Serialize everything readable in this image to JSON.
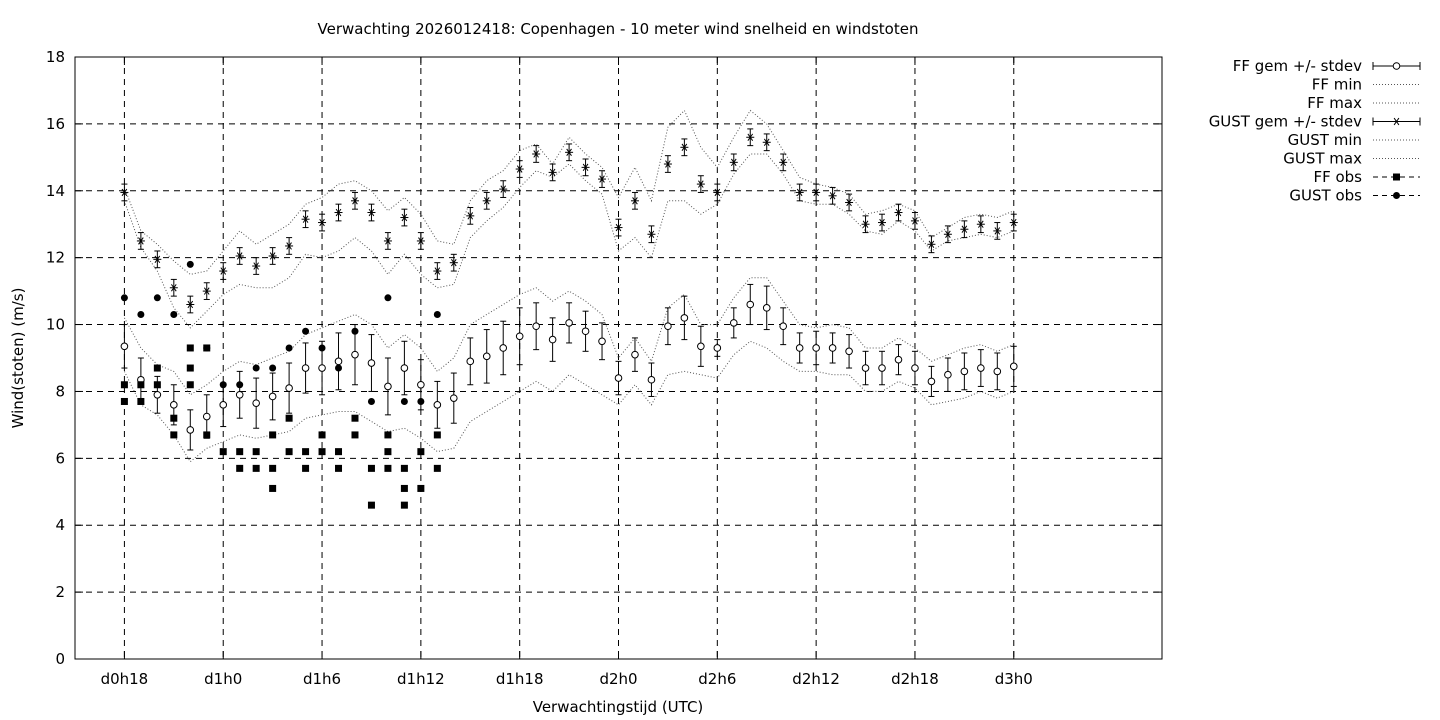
{
  "chart_data": {
    "type": "line",
    "title": "Verwachting 2026012418: Copenhagen - 10 meter wind snelheid en windstoten",
    "xlabel": "Verwachtingstijd (UTC)",
    "ylabel": "Wind(stoten) (m/s)",
    "ylim": [
      0,
      18
    ],
    "yticks": [
      0,
      2,
      4,
      6,
      8,
      10,
      12,
      14,
      16,
      18
    ],
    "x_unit": "hours since d0h0",
    "xlim": [
      15,
      81
    ],
    "xticks": [
      {
        "x": 18,
        "label": "d0h18"
      },
      {
        "x": 24,
        "label": "d1h0"
      },
      {
        "x": 30,
        "label": "d1h6"
      },
      {
        "x": 36,
        "label": "d1h12"
      },
      {
        "x": 42,
        "label": "d1h18"
      },
      {
        "x": 48,
        "label": "d2h0"
      },
      {
        "x": 54,
        "label": "d2h6"
      },
      {
        "x": 60,
        "label": "d2h12"
      },
      {
        "x": 66,
        "label": "d2h18"
      },
      {
        "x": 72,
        "label": "d3h0"
      }
    ],
    "grid": true,
    "legend_position": "outside-right",
    "x": [
      18,
      19,
      20,
      21,
      22,
      23,
      24,
      25,
      26,
      27,
      28,
      29,
      30,
      31,
      32,
      33,
      34,
      35,
      36,
      37,
      38,
      39,
      40,
      41,
      42,
      43,
      44,
      45,
      46,
      47,
      48,
      49,
      50,
      51,
      52,
      53,
      54,
      55,
      56,
      57,
      58,
      59,
      60,
      61,
      62,
      63,
      64,
      65,
      66,
      67,
      68,
      69,
      70,
      71,
      72
    ],
    "series": [
      {
        "name": "FF gem +/- stdev",
        "style": "errorbar-open-circle",
        "values": [
          9.35,
          8.35,
          7.9,
          7.6,
          6.85,
          7.25,
          7.6,
          7.9,
          7.65,
          7.85,
          8.1,
          8.7,
          8.7,
          8.9,
          9.1,
          8.85,
          8.15,
          8.7,
          8.2,
          7.6,
          7.8,
          8.9,
          9.05,
          9.3,
          9.65,
          9.95,
          9.55,
          10.05,
          9.8,
          9.5,
          8.4,
          9.1,
          8.35,
          9.95,
          10.2,
          9.35,
          9.3,
          10.05,
          10.6,
          10.5,
          9.95,
          9.3,
          9.3,
          9.3,
          9.2,
          8.7,
          8.7,
          8.95,
          8.7,
          8.3,
          8.5,
          8.6,
          8.7,
          8.6,
          8.75
        ],
        "stdev": [
          0.65,
          0.65,
          0.55,
          0.6,
          0.6,
          0.65,
          0.65,
          0.7,
          0.75,
          0.7,
          0.75,
          0.75,
          0.8,
          0.85,
          0.9,
          0.85,
          0.85,
          0.8,
          0.75,
          0.7,
          0.75,
          0.7,
          0.8,
          0.8,
          0.85,
          0.7,
          0.65,
          0.6,
          0.6,
          0.55,
          0.5,
          0.5,
          0.5,
          0.55,
          0.65,
          0.6,
          0.25,
          0.45,
          0.6,
          0.65,
          0.55,
          0.45,
          0.5,
          0.45,
          0.5,
          0.5,
          0.5,
          0.45,
          0.5,
          0.45,
          0.5,
          0.55,
          0.55,
          0.55,
          0.6
        ]
      },
      {
        "name": "FF min",
        "style": "dotted",
        "values": [
          8.6,
          7.6,
          7.3,
          6.7,
          5.9,
          6.3,
          6.5,
          6.7,
          6.6,
          6.7,
          6.8,
          7.2,
          7.3,
          7.4,
          7.4,
          7.1,
          6.8,
          6.9,
          6.6,
          6.2,
          6.3,
          7.1,
          7.4,
          7.7,
          8.0,
          8.3,
          8.0,
          8.5,
          8.2,
          7.9,
          7.6,
          8.2,
          7.6,
          8.5,
          8.6,
          8.5,
          8.4,
          9.1,
          9.5,
          9.3,
          8.9,
          8.6,
          8.6,
          8.5,
          8.5,
          8.0,
          8.0,
          8.3,
          8.1,
          7.6,
          7.7,
          7.8,
          8.0,
          7.8,
          8.0
        ]
      },
      {
        "name": "FF max",
        "style": "dotted",
        "values": [
          10.2,
          9.3,
          8.8,
          8.6,
          7.9,
          8.2,
          8.6,
          8.9,
          8.8,
          9.0,
          9.2,
          9.7,
          9.9,
          10.1,
          10.3,
          10.0,
          9.3,
          9.7,
          9.3,
          8.6,
          9.0,
          10.0,
          10.3,
          10.6,
          10.9,
          11.1,
          10.7,
          11.0,
          10.7,
          10.3,
          9.0,
          9.6,
          8.9,
          10.5,
          10.9,
          10.0,
          10.0,
          10.8,
          11.4,
          11.4,
          10.7,
          10.0,
          9.9,
          10.0,
          9.9,
          9.3,
          9.3,
          9.6,
          9.3,
          8.9,
          9.1,
          9.3,
          9.4,
          9.2,
          9.4
        ]
      },
      {
        "name": "GUST gem +/- stdev",
        "style": "errorbar-star",
        "values": [
          13.95,
          12.5,
          11.95,
          11.1,
          10.6,
          11.0,
          11.6,
          12.05,
          11.75,
          12.05,
          12.35,
          13.15,
          13.05,
          13.35,
          13.7,
          13.35,
          12.5,
          13.2,
          12.5,
          11.6,
          11.85,
          13.25,
          13.7,
          14.05,
          14.65,
          15.1,
          14.55,
          15.15,
          14.7,
          14.35,
          12.9,
          13.7,
          12.7,
          14.8,
          15.3,
          14.2,
          13.95,
          14.85,
          15.6,
          15.45,
          14.85,
          13.95,
          13.95,
          13.85,
          13.65,
          13.0,
          13.05,
          13.35,
          13.1,
          12.4,
          12.7,
          12.85,
          13.0,
          12.8,
          13.05
        ]
      },
      {
        "name": "GUST min",
        "style": "dotted",
        "values": [
          13.7,
          12.3,
          11.6,
          10.5,
          9.9,
          10.4,
          10.9,
          11.2,
          11.1,
          11.1,
          11.4,
          12.1,
          12.0,
          12.2,
          12.6,
          12.2,
          11.5,
          12.1,
          11.5,
          11.1,
          11.2,
          12.6,
          13.1,
          13.5,
          14.1,
          14.6,
          14.4,
          14.8,
          14.3,
          13.9,
          12.2,
          12.6,
          12.0,
          13.7,
          13.7,
          13.3,
          13.6,
          14.5,
          15.1,
          15.1,
          14.5,
          13.7,
          13.6,
          13.6,
          13.3,
          12.8,
          12.7,
          13.1,
          12.8,
          12.2,
          12.5,
          12.6,
          12.7,
          12.6,
          12.8
        ]
      },
      {
        "name": "GUST max",
        "style": "dotted",
        "values": [
          14.1,
          12.8,
          12.4,
          11.9,
          11.5,
          11.6,
          12.2,
          12.8,
          12.4,
          12.7,
          13.0,
          13.6,
          13.8,
          14.2,
          14.3,
          14.0,
          13.4,
          13.8,
          13.3,
          12.5,
          12.4,
          13.7,
          14.3,
          14.6,
          15.2,
          15.4,
          14.8,
          15.6,
          15.1,
          14.7,
          13.8,
          14.7,
          13.7,
          15.9,
          16.4,
          15.3,
          14.7,
          15.6,
          16.4,
          16.0,
          15.2,
          14.4,
          14.2,
          14.1,
          13.9,
          13.3,
          13.4,
          13.6,
          13.4,
          12.6,
          12.9,
          13.2,
          13.3,
          13.2,
          13.4
        ]
      },
      {
        "name": "FF obs",
        "style": "filled-square",
        "points": [
          [
            18,
            7.7
          ],
          [
            18,
            8.2
          ],
          [
            19,
            7.7
          ],
          [
            19,
            8.2
          ],
          [
            20,
            8.2
          ],
          [
            20,
            8.7
          ],
          [
            21,
            6.7
          ],
          [
            21,
            7.2
          ],
          [
            22,
            8.2
          ],
          [
            22,
            8.7
          ],
          [
            22,
            9.3
          ],
          [
            23,
            6.7
          ],
          [
            23,
            9.3
          ],
          [
            24,
            6.2
          ],
          [
            25,
            5.7
          ],
          [
            25,
            6.2
          ],
          [
            26,
            5.7
          ],
          [
            26,
            6.2
          ],
          [
            27,
            5.1
          ],
          [
            27,
            5.7
          ],
          [
            27,
            6.7
          ],
          [
            28,
            6.2
          ],
          [
            28,
            7.2
          ],
          [
            29,
            5.7
          ],
          [
            29,
            6.2
          ],
          [
            30,
            6.2
          ],
          [
            30,
            6.7
          ],
          [
            31,
            5.7
          ],
          [
            31,
            6.2
          ],
          [
            32,
            6.7
          ],
          [
            32,
            7.2
          ],
          [
            33,
            4.6
          ],
          [
            33,
            5.7
          ],
          [
            34,
            5.7
          ],
          [
            34,
            6.2
          ],
          [
            34,
            6.7
          ],
          [
            35,
            4.6
          ],
          [
            35,
            5.1
          ],
          [
            35,
            5.7
          ],
          [
            36,
            5.1
          ],
          [
            36,
            6.2
          ],
          [
            37,
            5.7
          ],
          [
            37,
            6.7
          ]
        ]
      },
      {
        "name": "GUST obs",
        "style": "filled-circle",
        "points": [
          [
            18,
            10.8
          ],
          [
            19,
            10.3
          ],
          [
            20,
            10.8
          ],
          [
            21,
            10.3
          ],
          [
            22,
            11.8
          ],
          [
            23,
            9.3
          ],
          [
            24,
            8.2
          ],
          [
            25,
            8.2
          ],
          [
            26,
            8.7
          ],
          [
            27,
            8.7
          ],
          [
            28,
            9.3
          ],
          [
            29,
            9.8
          ],
          [
            30,
            9.3
          ],
          [
            31,
            8.7
          ],
          [
            32,
            9.8
          ],
          [
            33,
            7.7
          ],
          [
            34,
            10.8
          ],
          [
            35,
            7.7
          ],
          [
            36,
            7.7
          ],
          [
            37,
            10.3
          ]
        ]
      }
    ]
  }
}
